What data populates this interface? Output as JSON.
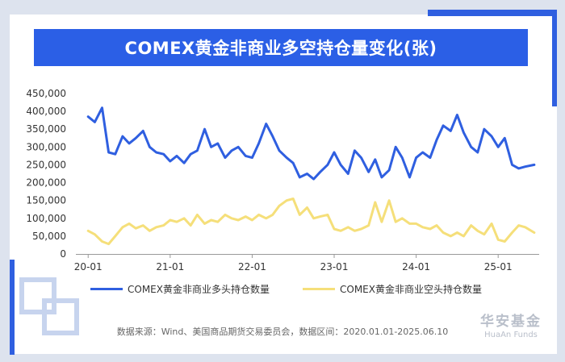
{
  "title": "COMEX黄金非商业多空持仓量变化(张)",
  "source_note": "数据来源：Wind、美国商品期货交易委员会，数据区间：2020.01.01-2025.06.10",
  "brand": {
    "name_cn": "华安基金",
    "name_en": "HuaAn Funds"
  },
  "colors": {
    "accent": "#2b5fe6",
    "long": "#2f5fe0",
    "short": "#f5df7a"
  },
  "chart_data": {
    "type": "line",
    "title": "COMEX黄金非商业多空持仓量变化(张)",
    "xlabel": "",
    "ylabel": "",
    "x": [
      2020.0,
      2020.08,
      2020.17,
      2020.25,
      2020.33,
      2020.42,
      2020.5,
      2020.58,
      2020.67,
      2020.75,
      2020.83,
      2020.92,
      2021.0,
      2021.08,
      2021.17,
      2021.25,
      2021.33,
      2021.42,
      2021.5,
      2021.58,
      2021.67,
      2021.75,
      2021.83,
      2021.92,
      2022.0,
      2022.08,
      2022.17,
      2022.25,
      2022.33,
      2022.42,
      2022.5,
      2022.58,
      2022.67,
      2022.75,
      2022.83,
      2022.92,
      2023.0,
      2023.08,
      2023.17,
      2023.25,
      2023.33,
      2023.42,
      2023.5,
      2023.58,
      2023.67,
      2023.75,
      2023.83,
      2023.92,
      2024.0,
      2024.08,
      2024.17,
      2024.25,
      2024.33,
      2024.42,
      2024.5,
      2024.58,
      2024.67,
      2024.75,
      2024.83,
      2024.92,
      2025.0,
      2025.08,
      2025.17,
      2025.25,
      2025.33,
      2025.44
    ],
    "xlim": [
      2019.85,
      2025.5
    ],
    "ylim": [
      0,
      450000
    ],
    "yticks": [
      0,
      50000,
      100000,
      150000,
      200000,
      250000,
      300000,
      350000,
      400000,
      450000
    ],
    "ytick_labels": [
      "0",
      "50,000",
      "100,000",
      "150,000",
      "200,000",
      "250,000",
      "300,000",
      "350,000",
      "400,000",
      "450,000"
    ],
    "xticks": [
      2020.0,
      2021.0,
      2022.0,
      2023.0,
      2024.0,
      2025.0
    ],
    "xtick_labels": [
      "20-01",
      "21-01",
      "22-01",
      "23-01",
      "24-01",
      "25-01"
    ],
    "legend_position": "bottom",
    "series": [
      {
        "name": "COMEX黄金非商业多头持仓数量",
        "color": "#2f5fe0",
        "values": [
          385000,
          370000,
          410000,
          285000,
          280000,
          330000,
          310000,
          325000,
          345000,
          300000,
          285000,
          280000,
          260000,
          275000,
          255000,
          280000,
          290000,
          350000,
          300000,
          310000,
          270000,
          290000,
          300000,
          275000,
          270000,
          310000,
          365000,
          330000,
          290000,
          270000,
          255000,
          215000,
          225000,
          210000,
          230000,
          250000,
          285000,
          250000,
          225000,
          290000,
          270000,
          230000,
          265000,
          215000,
          235000,
          300000,
          270000,
          215000,
          270000,
          285000,
          270000,
          320000,
          360000,
          345000,
          390000,
          340000,
          300000,
          285000,
          350000,
          330000,
          300000,
          325000,
          250000,
          240000,
          245000,
          250000
        ]
      },
      {
        "name": "COMEX黄金非商业空头持仓数量",
        "color": "#f5df7a",
        "values": [
          65000,
          55000,
          35000,
          28000,
          50000,
          75000,
          85000,
          72000,
          80000,
          65000,
          75000,
          80000,
          95000,
          90000,
          100000,
          80000,
          110000,
          85000,
          95000,
          90000,
          110000,
          100000,
          95000,
          105000,
          95000,
          110000,
          100000,
          110000,
          135000,
          150000,
          155000,
          110000,
          130000,
          100000,
          105000,
          110000,
          70000,
          65000,
          75000,
          65000,
          70000,
          80000,
          145000,
          90000,
          150000,
          90000,
          100000,
          85000,
          85000,
          75000,
          70000,
          80000,
          60000,
          50000,
          60000,
          50000,
          80000,
          65000,
          55000,
          85000,
          40000,
          35000,
          60000,
          80000,
          75000,
          60000
        ]
      }
    ]
  }
}
